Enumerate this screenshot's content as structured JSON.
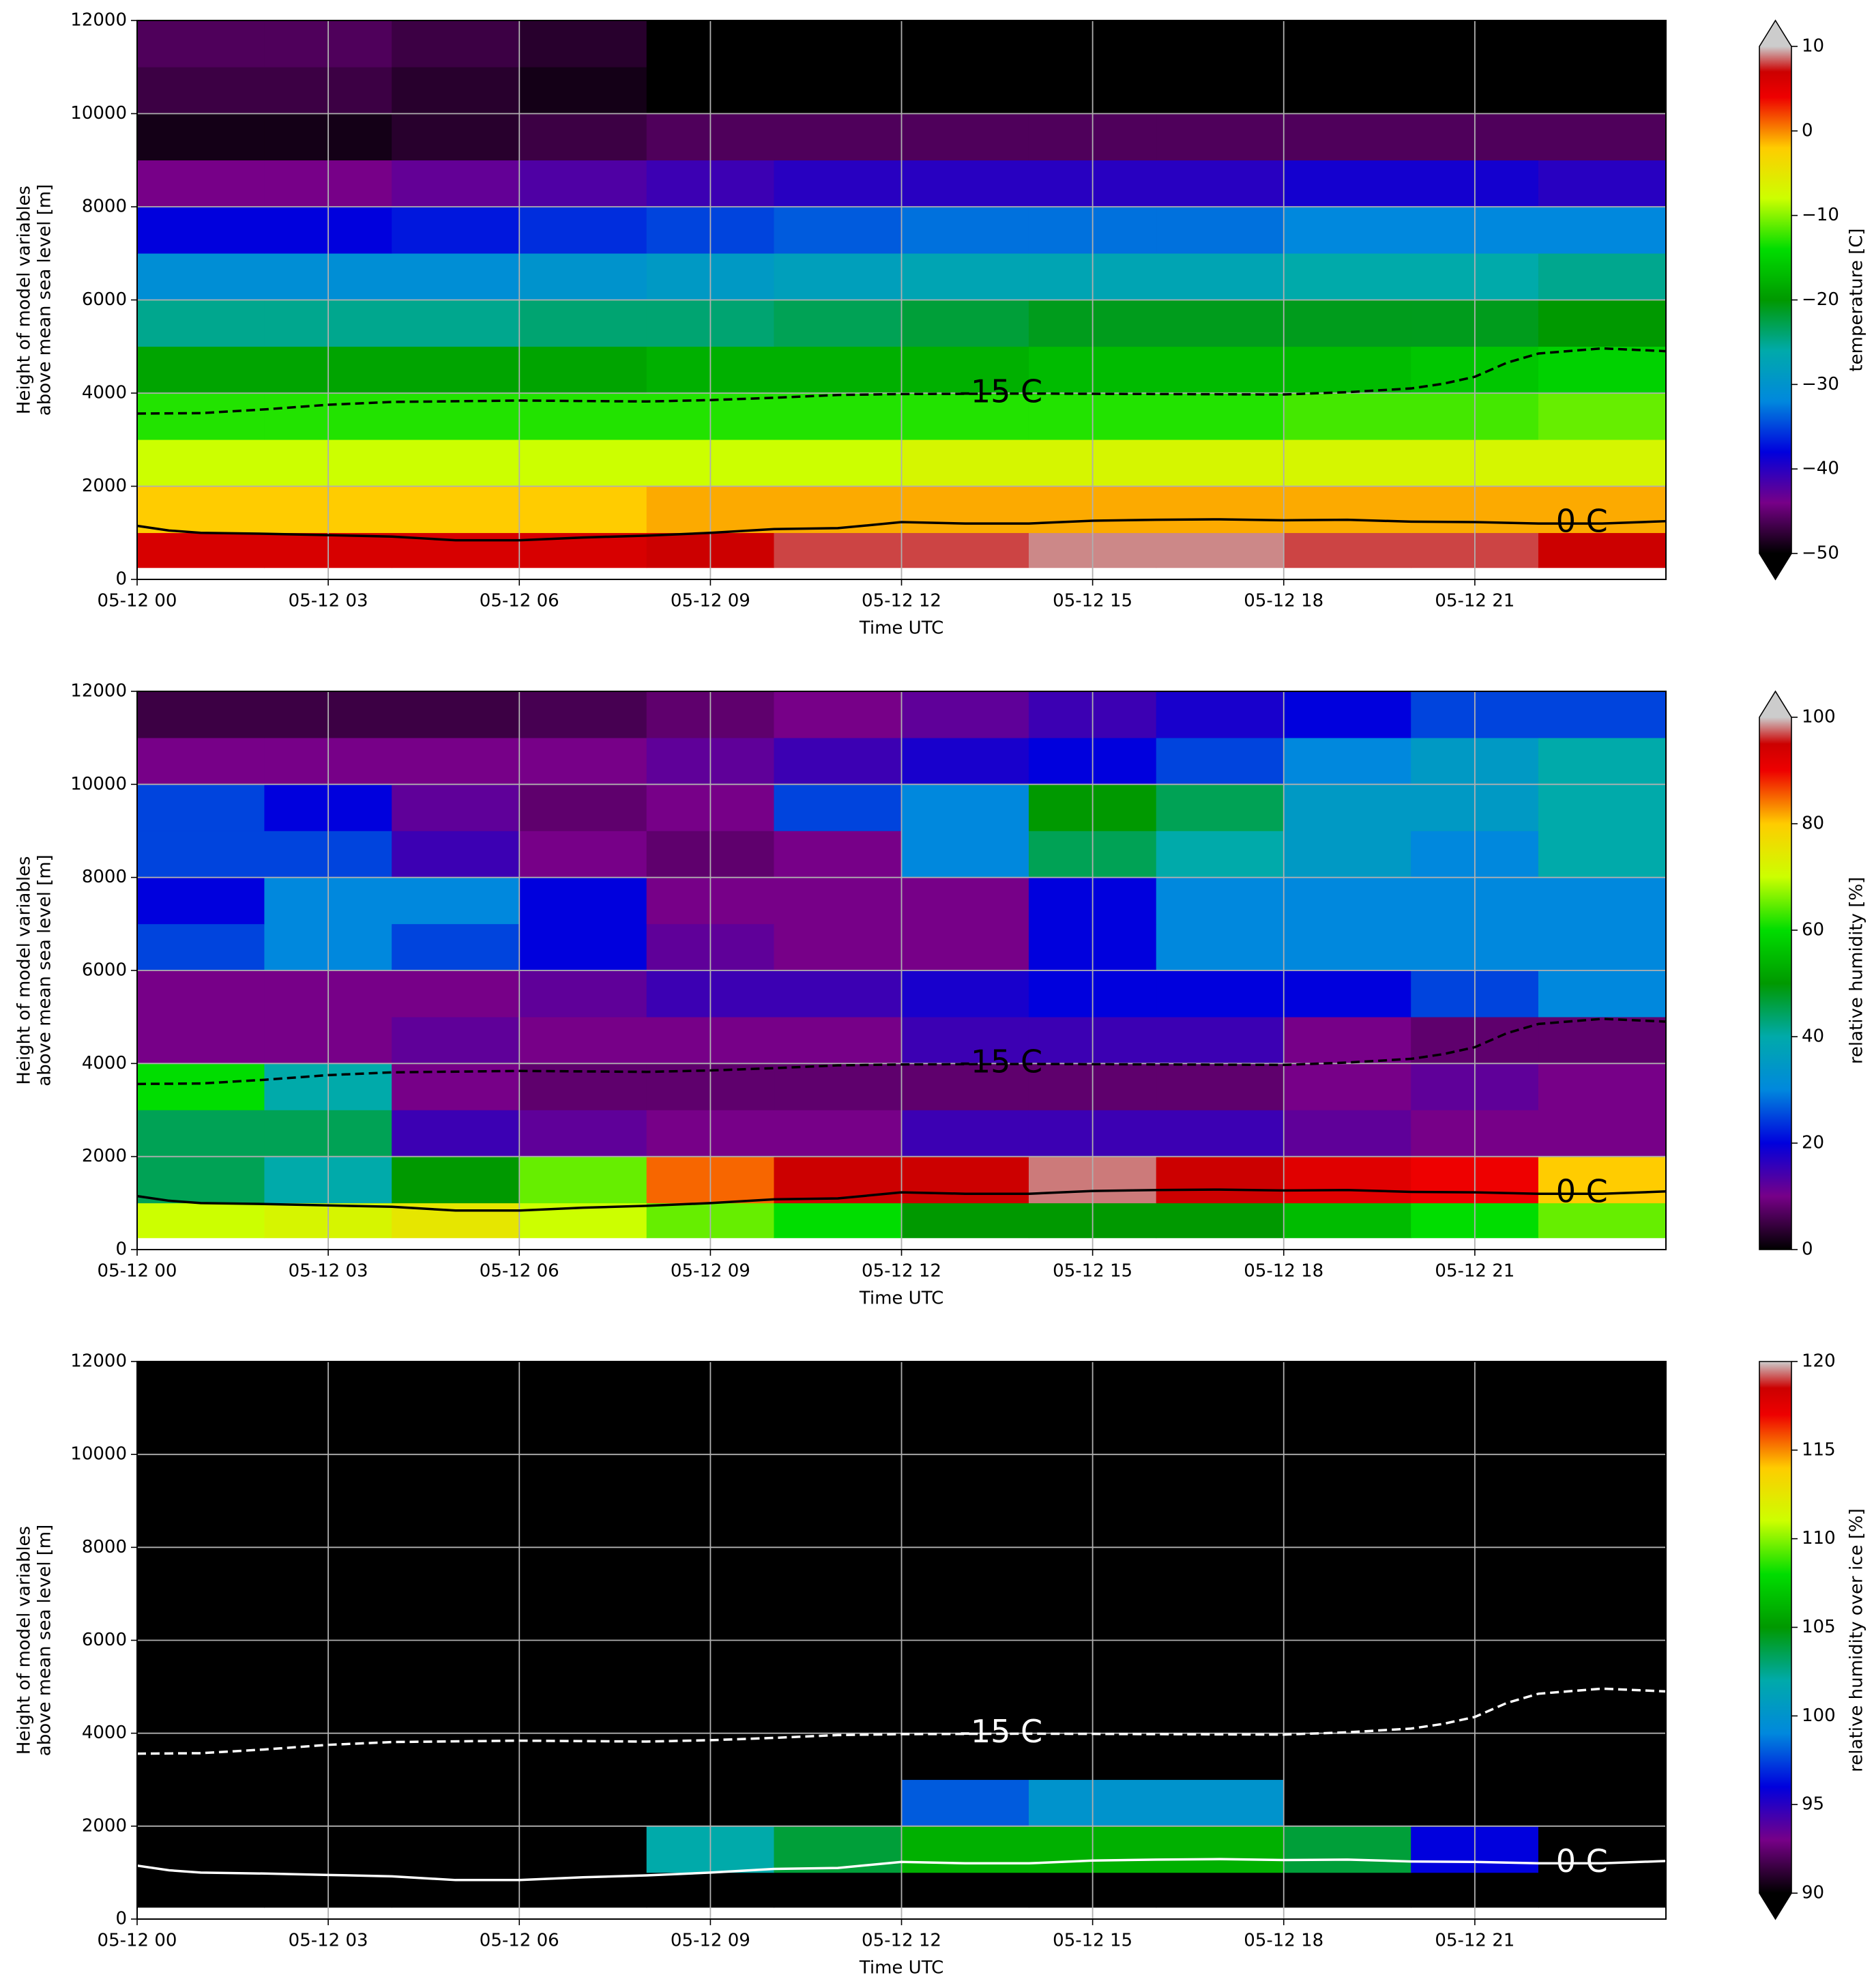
{
  "chart_data": [
    {
      "type": "heatmap",
      "xlabel": "Time UTC",
      "ylabel": [
        "Height of model variables",
        "above mean sea level [m]"
      ],
      "xlim": [
        0,
        24
      ],
      "xticks": [
        {
          "value": 0,
          "label": "05-12 00"
        },
        {
          "value": 3,
          "label": "05-12 03"
        },
        {
          "value": 6,
          "label": "05-12 06"
        },
        {
          "value": 9,
          "label": "05-12 09"
        },
        {
          "value": 12,
          "label": "05-12 12"
        },
        {
          "value": 15,
          "label": "05-12 15"
        },
        {
          "value": 18,
          "label": "05-12 18"
        },
        {
          "value": 21,
          "label": "05-12 21"
        }
      ],
      "ylim": [
        0,
        12000
      ],
      "yticks": [
        0,
        2000,
        4000,
        6000,
        8000,
        10000,
        12000
      ],
      "grid": true,
      "x_bins": [
        0,
        2,
        4,
        6,
        8,
        10,
        12,
        14,
        16,
        18,
        20,
        22,
        24
      ],
      "y_bins": [
        250,
        1000,
        2000,
        3000,
        4000,
        5000,
        6000,
        7000,
        8000,
        9000,
        10000,
        11000,
        12000
      ],
      "z": [
        [
          6,
          6,
          6,
          6,
          7,
          8,
          8,
          9,
          9,
          8,
          8,
          7
        ],
        [
          -2,
          -2,
          -2,
          -2,
          -1,
          -1,
          -1,
          -1,
          -1,
          -1,
          -1,
          -1
        ],
        [
          -8,
          -8,
          -8,
          -8,
          -8,
          -8,
          -7,
          -7,
          -7,
          -7,
          -7,
          -7
        ],
        [
          -13,
          -13,
          -13,
          -13,
          -13,
          -13,
          -13,
          -13,
          -13,
          -12,
          -12,
          -11
        ],
        [
          -19,
          -19,
          -19,
          -19,
          -18,
          -18,
          -18,
          -17,
          -17,
          -17,
          -16,
          -15
        ],
        [
          -25,
          -25,
          -25,
          -24,
          -24,
          -23,
          -22,
          -21,
          -21,
          -21,
          -21,
          -20
        ],
        [
          -31,
          -31,
          -31,
          -30,
          -29,
          -28,
          -27,
          -27,
          -27,
          -26,
          -26,
          -25
        ],
        [
          -38,
          -38,
          -37,
          -36,
          -35,
          -34,
          -33,
          -33,
          -33,
          -32,
          -32,
          -32
        ],
        [
          -44,
          -44,
          -43,
          -42,
          -41,
          -40,
          -40,
          -40,
          -40,
          -39,
          -39,
          -40
        ],
        [
          -49,
          -49,
          -48,
          -47,
          -46,
          -46,
          -46,
          -46,
          -46,
          -46,
          -46,
          -46
        ],
        [
          -47,
          -47,
          -48,
          -49,
          -52,
          -54,
          -55,
          -55,
          -55,
          -55,
          -55,
          -55
        ],
        [
          -46,
          -46,
          -47,
          -48,
          -52,
          -55,
          -56,
          -56,
          -56,
          -56,
          -56,
          -56
        ]
      ],
      "colormap": "nipy_spectral",
      "clim": [
        -50,
        10
      ],
      "extend": "both",
      "colorbar_label": "temperature [C]",
      "cticks": [
        {
          "value": -50,
          "label": "−50"
        },
        {
          "value": -40,
          "label": "−40"
        },
        {
          "value": -30,
          "label": "−30"
        },
        {
          "value": -20,
          "label": "−20"
        },
        {
          "value": -10,
          "label": "−10"
        },
        0,
        10
      ],
      "contours": [
        {
          "label": "0 C",
          "style": "solid",
          "color": "#000000",
          "x": [
            0,
            0.5,
            1,
            2,
            3,
            4,
            4.5,
            5,
            6,
            7,
            8,
            9,
            10,
            11,
            12,
            13,
            14,
            15,
            16,
            17,
            18,
            19,
            20,
            21,
            22,
            23,
            24
          ],
          "values": [
            1150,
            1050,
            1000,
            980,
            950,
            920,
            880,
            840,
            840,
            900,
            940,
            1000,
            1080,
            1100,
            1230,
            1200,
            1200,
            1260,
            1280,
            1290,
            1270,
            1280,
            1240,
            1230,
            1200,
            1200,
            1250
          ]
        },
        {
          "label": "-15 C",
          "style": "dashed",
          "color": "#000000",
          "x": [
            0,
            1,
            2,
            3,
            4,
            6,
            8,
            9,
            10,
            11,
            12,
            14,
            16,
            18,
            19,
            20,
            20.5,
            21,
            21.5,
            22,
            23,
            24
          ],
          "values": [
            3560,
            3570,
            3650,
            3750,
            3810,
            3840,
            3820,
            3850,
            3900,
            3960,
            3980,
            3990,
            3980,
            3970,
            4020,
            4100,
            4200,
            4350,
            4650,
            4850,
            4960,
            4900
          ]
        }
      ]
    },
    {
      "type": "heatmap",
      "xlabel": "Time UTC",
      "ylabel": [
        "Height of model variables",
        "above mean sea level [m]"
      ],
      "xlim": [
        0,
        24
      ],
      "xticks": [
        {
          "value": 0,
          "label": "05-12 00"
        },
        {
          "value": 3,
          "label": "05-12 03"
        },
        {
          "value": 6,
          "label": "05-12 06"
        },
        {
          "value": 9,
          "label": "05-12 09"
        },
        {
          "value": 12,
          "label": "05-12 12"
        },
        {
          "value": 15,
          "label": "05-12 15"
        },
        {
          "value": 18,
          "label": "05-12 18"
        },
        {
          "value": 21,
          "label": "05-12 21"
        }
      ],
      "ylim": [
        0,
        12000
      ],
      "yticks": [
        0,
        2000,
        4000,
        6000,
        8000,
        10000,
        12000
      ],
      "grid": true,
      "x_bins": [
        0,
        2,
        4,
        6,
        8,
        10,
        12,
        14,
        16,
        18,
        20,
        22,
        24
      ],
      "y_bins": [
        250,
        1000,
        2000,
        3000,
        4000,
        5000,
        6000,
        7000,
        8000,
        9000,
        10000,
        11000,
        12000
      ],
      "z": [
        [
          70,
          72,
          75,
          70,
          65,
          60,
          50,
          50,
          50,
          55,
          60,
          65
        ],
        [
          45,
          40,
          50,
          65,
          85,
          95,
          95,
          98,
          95,
          92,
          90,
          80
        ],
        [
          45,
          45,
          15,
          12,
          10,
          10,
          15,
          15,
          15,
          12,
          10,
          10
        ],
        [
          60,
          40,
          10,
          8,
          8,
          8,
          8,
          8,
          8,
          10,
          12,
          10
        ],
        [
          10,
          10,
          12,
          10,
          10,
          10,
          15,
          15,
          15,
          10,
          8,
          8
        ],
        [
          10,
          10,
          10,
          12,
          15,
          15,
          18,
          20,
          20,
          20,
          25,
          30
        ],
        [
          25,
          30,
          25,
          20,
          12,
          10,
          10,
          20,
          30,
          30,
          30,
          30
        ],
        [
          20,
          30,
          30,
          20,
          10,
          10,
          10,
          20,
          30,
          30,
          30,
          30
        ],
        [
          25,
          25,
          15,
          10,
          8,
          10,
          30,
          45,
          40,
          35,
          30,
          40
        ],
        [
          25,
          20,
          12,
          8,
          10,
          25,
          30,
          50,
          45,
          35,
          35,
          40
        ],
        [
          10,
          10,
          10,
          10,
          12,
          15,
          18,
          20,
          25,
          30,
          35,
          40
        ],
        [
          5,
          5,
          5,
          6,
          8,
          10,
          12,
          15,
          18,
          20,
          25,
          25
        ]
      ],
      "colormap": "nipy_spectral",
      "clim": [
        0,
        100
      ],
      "extend": "max",
      "colorbar_label": "relative humidity [%]",
      "cticks": [
        0,
        20,
        40,
        60,
        80,
        100
      ],
      "contours": [
        {
          "label": "0 C",
          "style": "solid",
          "color": "#000000",
          "x": [
            0,
            0.5,
            1,
            2,
            3,
            4,
            4.5,
            5,
            6,
            7,
            8,
            9,
            10,
            11,
            12,
            13,
            14,
            15,
            16,
            17,
            18,
            19,
            20,
            21,
            22,
            23,
            24
          ],
          "values": [
            1150,
            1050,
            1000,
            980,
            950,
            920,
            880,
            840,
            840,
            900,
            940,
            1000,
            1080,
            1100,
            1230,
            1200,
            1200,
            1260,
            1280,
            1290,
            1270,
            1280,
            1240,
            1230,
            1200,
            1200,
            1250
          ]
        },
        {
          "label": "-15 C",
          "style": "dashed",
          "color": "#000000",
          "x": [
            0,
            1,
            2,
            3,
            4,
            6,
            8,
            9,
            10,
            11,
            12,
            14,
            16,
            18,
            19,
            20,
            20.5,
            21,
            21.5,
            22,
            23,
            24
          ],
          "values": [
            3560,
            3570,
            3650,
            3750,
            3810,
            3840,
            3820,
            3850,
            3900,
            3960,
            3980,
            3990,
            3980,
            3970,
            4020,
            4100,
            4200,
            4350,
            4650,
            4850,
            4960,
            4900
          ]
        }
      ]
    },
    {
      "type": "heatmap",
      "xlabel": "Time UTC",
      "ylabel": [
        "Height of model variables",
        "above mean sea level [m]"
      ],
      "xlim": [
        0,
        24
      ],
      "xticks": [
        {
          "value": 0,
          "label": "05-12 00"
        },
        {
          "value": 3,
          "label": "05-12 03"
        },
        {
          "value": 6,
          "label": "05-12 06"
        },
        {
          "value": 9,
          "label": "05-12 09"
        },
        {
          "value": 12,
          "label": "05-12 12"
        },
        {
          "value": 15,
          "label": "05-12 15"
        },
        {
          "value": 18,
          "label": "05-12 18"
        },
        {
          "value": 21,
          "label": "05-12 21"
        }
      ],
      "ylim": [
        0,
        12000
      ],
      "yticks": [
        0,
        2000,
        4000,
        6000,
        8000,
        10000,
        12000
      ],
      "grid": true,
      "x_bins": [
        0,
        2,
        4,
        6,
        8,
        10,
        12,
        14,
        16,
        18,
        20,
        22,
        24
      ],
      "y_bins": [
        250,
        1000,
        2000,
        3000,
        4000,
        5000,
        6000,
        7000,
        8000,
        9000,
        10000,
        11000,
        12000
      ],
      "z": [
        [
          60,
          60,
          60,
          60,
          60,
          60,
          60,
          60,
          60,
          60,
          60,
          60
        ],
        [
          60,
          60,
          60,
          60,
          102,
          104,
          106,
          106,
          106,
          104,
          96,
          60
        ],
        [
          60,
          60,
          60,
          60,
          60,
          60,
          98,
          100,
          100,
          60,
          60,
          60
        ],
        [
          60,
          60,
          60,
          60,
          60,
          60,
          60,
          60,
          60,
          60,
          60,
          60
        ],
        [
          60,
          60,
          60,
          60,
          60,
          60,
          60,
          60,
          60,
          60,
          60,
          60
        ],
        [
          60,
          60,
          60,
          60,
          60,
          60,
          60,
          60,
          60,
          60,
          60,
          60
        ],
        [
          60,
          60,
          60,
          60,
          60,
          60,
          60,
          60,
          60,
          60,
          60,
          60
        ],
        [
          60,
          60,
          60,
          60,
          60,
          60,
          60,
          60,
          60,
          60,
          60,
          60
        ],
        [
          60,
          60,
          60,
          60,
          60,
          60,
          60,
          60,
          60,
          60,
          60,
          60
        ],
        [
          60,
          60,
          60,
          60,
          60,
          60,
          60,
          60,
          60,
          60,
          60,
          60
        ],
        [
          60,
          60,
          60,
          60,
          60,
          60,
          60,
          60,
          60,
          60,
          60,
          60
        ],
        [
          60,
          60,
          60,
          60,
          60,
          60,
          60,
          60,
          60,
          60,
          60,
          60
        ]
      ],
      "colormap": "nipy_spectral",
      "clim": [
        90,
        120
      ],
      "extend": "min",
      "colorbar_label": "relative humidity over ice [%]",
      "cticks": [
        90,
        95,
        100,
        105,
        110,
        115,
        120
      ],
      "contours": [
        {
          "label": "0 C",
          "style": "solid",
          "color": "#ffffff",
          "x": [
            0,
            0.5,
            1,
            2,
            3,
            4,
            4.5,
            5,
            6,
            7,
            8,
            9,
            10,
            11,
            12,
            13,
            14,
            15,
            16,
            17,
            18,
            19,
            20,
            21,
            22,
            23,
            24
          ],
          "values": [
            1150,
            1050,
            1000,
            980,
            950,
            920,
            880,
            840,
            840,
            900,
            940,
            1000,
            1080,
            1100,
            1230,
            1200,
            1200,
            1260,
            1280,
            1290,
            1270,
            1280,
            1240,
            1230,
            1200,
            1200,
            1250
          ]
        },
        {
          "label": "-15 C",
          "style": "dashed",
          "color": "#ffffff",
          "x": [
            0,
            1,
            2,
            3,
            4,
            6,
            8,
            9,
            10,
            11,
            12,
            14,
            16,
            18,
            19,
            20,
            20.5,
            21,
            21.5,
            22,
            23,
            24
          ],
          "values": [
            3560,
            3570,
            3650,
            3750,
            3810,
            3840,
            3820,
            3850,
            3900,
            3960,
            3980,
            3990,
            3980,
            3970,
            4020,
            4100,
            4200,
            4350,
            4650,
            4850,
            4960,
            4900
          ]
        }
      ]
    }
  ]
}
